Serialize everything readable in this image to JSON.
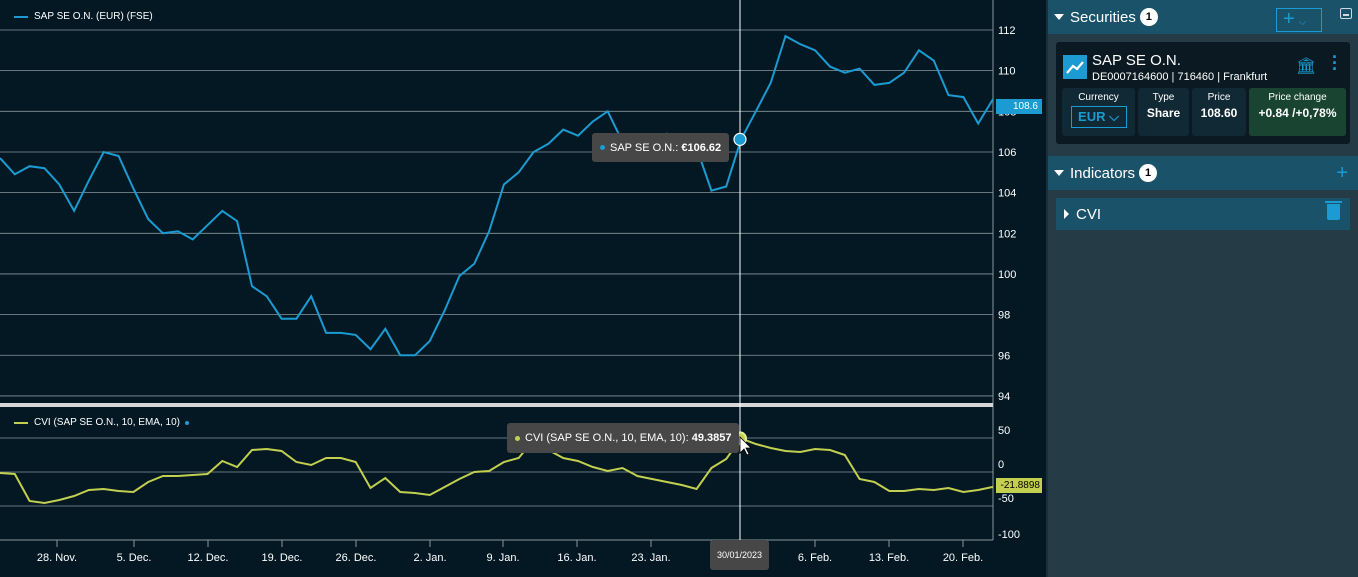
{
  "colors": {
    "price": "#1b9bd1",
    "cvi": "#c3cf4f",
    "accent": "#1b9bd1"
  },
  "chart_legend": {
    "price": "SAP SE O.N. (EUR) (FSE)",
    "cvi": "CVI (SAP SE O.N., 10, EMA, 10)"
  },
  "tooltips": {
    "price_label": "SAP SE O.N.:",
    "price_value": "€106.62",
    "cvi_label": "CVI (SAP SE O.N., 10, EMA, 10):",
    "cvi_value": "49.3857",
    "date": "30/01/2023"
  },
  "last_tags": {
    "price": "108.6",
    "cvi": "-21.8898"
  },
  "chart_data": [
    {
      "type": "line",
      "title": "SAP SE O.N. (EUR) (FSE)",
      "ylim": [
        93,
        113
      ],
      "yticks": [
        112,
        110,
        108,
        106,
        104,
        102,
        100,
        98,
        96,
        94
      ],
      "xticks": [
        "28. Nov.",
        "5. Dec.",
        "12. Dec.",
        "19. Dec.",
        "26. Dec.",
        "2. Jan.",
        "9. Jan.",
        "16. Jan.",
        "23. Jan.",
        "30/01/2023",
        "6. Feb.",
        "13. Feb.",
        "20. Feb."
      ],
      "values": [
        105.7,
        104.9,
        105.3,
        105.2,
        104.4,
        103.1,
        104.6,
        106.0,
        105.8,
        104.2,
        102.7,
        102.0,
        102.1,
        101.7,
        102.4,
        103.1,
        102.6,
        99.4,
        98.9,
        97.8,
        97.8,
        98.9,
        97.1,
        97.1,
        97.0,
        96.3,
        97.3,
        96.0,
        96.0,
        96.7,
        98.2,
        99.9,
        100.5,
        102.1,
        104.4,
        105.0,
        106.0,
        106.4,
        107.1,
        106.8,
        107.5,
        108.0,
        106.5,
        106.1,
        106.1,
        106.9,
        106.1,
        106.2,
        104.1,
        104.3,
        106.62,
        108.0,
        109.4,
        111.7,
        111.3,
        111.0,
        110.2,
        109.9,
        110.1,
        109.3,
        109.4,
        109.9,
        111.0,
        110.5,
        108.8,
        108.7,
        107.4,
        108.6
      ]
    },
    {
      "type": "line",
      "title": "CVI (SAP SE O.N., 10, EMA, 10)",
      "ylim": [
        -110,
        60
      ],
      "yticks": [
        50,
        0,
        -50,
        -100
      ],
      "values": [
        -1.5,
        -2.9,
        -42.6,
        -45.6,
        -41.2,
        -35.3,
        -26.5,
        -25,
        -27.9,
        -29.4,
        -14.7,
        -5.9,
        -5.9,
        -4.4,
        -2.9,
        16.2,
        7.4,
        32.4,
        33.8,
        30.9,
        14.7,
        10.3,
        20.6,
        20.6,
        14.7,
        -23.5,
        -8.8,
        -29.4,
        -30.9,
        -33.8,
        -22.1,
        -10.3,
        0,
        1.5,
        14.7,
        20.6,
        47,
        32.4,
        20.6,
        16.2,
        7.4,
        1.5,
        5.9,
        -5.9,
        -10.3,
        -14.7,
        -19.1,
        -25,
        5.9,
        19.1,
        49.3857,
        41.2,
        35.3,
        30.9,
        29.4,
        33.8,
        32.4,
        25,
        -10.3,
        -14.7,
        -27.9,
        -27.9,
        -25,
        -26.5,
        -23.5,
        -29.4,
        -26.5,
        -21.8898
      ]
    }
  ],
  "panel": {
    "securities_title": "Securities",
    "securities_count": "1",
    "add_label": "+",
    "add_caret": "⌵",
    "security": {
      "name": "SAP SE O.N.",
      "isin": "DE0007164600",
      "wkn": "716460",
      "exchange": "Frankfurt",
      "sep": " | ",
      "currency_label": "Currency",
      "currency": "EUR",
      "type_label": "Type",
      "type": "Share",
      "price_label": "Price",
      "price": "108.60",
      "change_label": "Price change",
      "change": "+0.84  /+0,78%"
    },
    "indicators_title": "Indicators",
    "indicators_count": "1",
    "indicator": "CVI"
  }
}
